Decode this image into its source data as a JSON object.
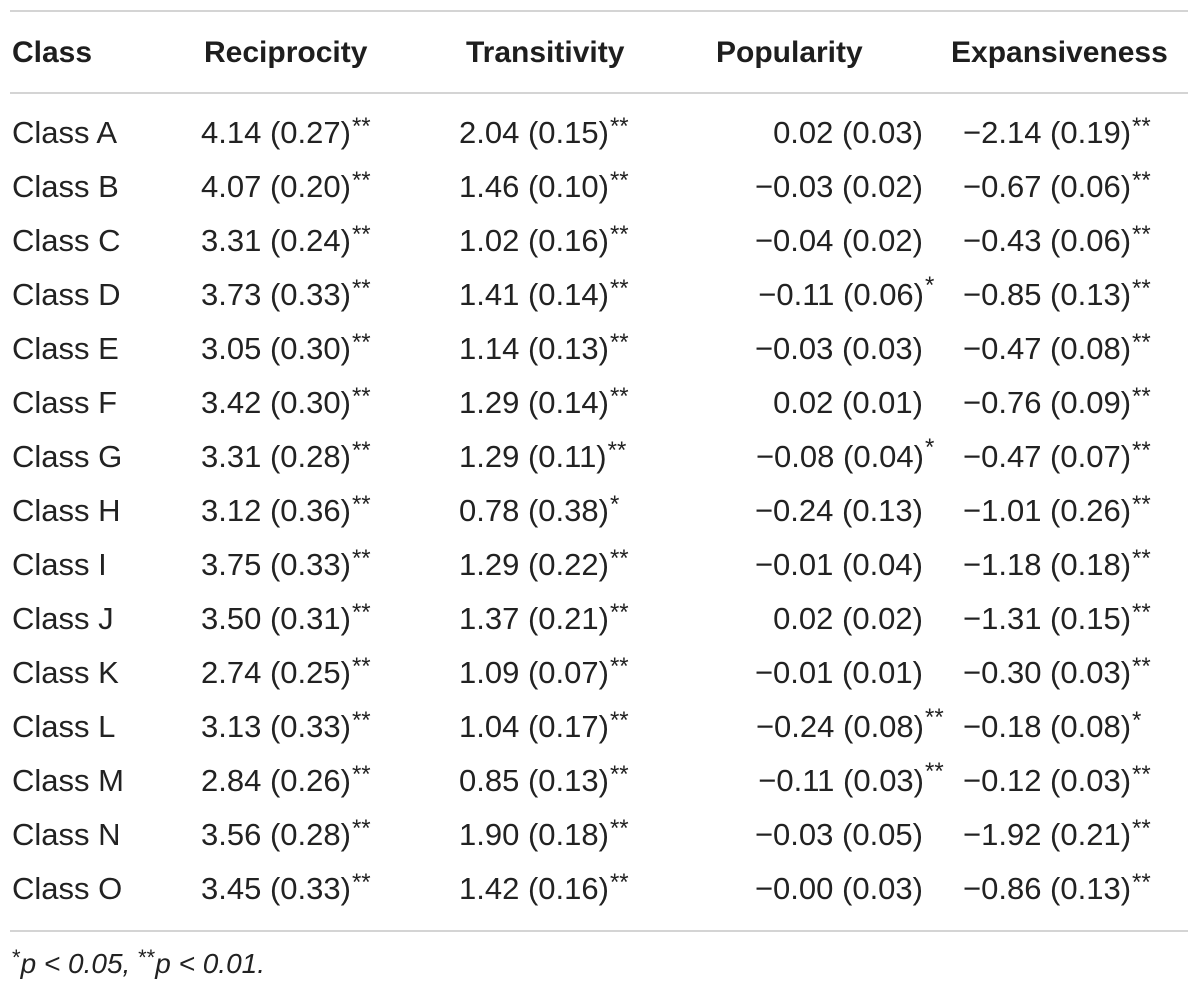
{
  "table": {
    "headers": [
      "Class",
      "Reciprocity",
      "Transitivity",
      "Popularity",
      "Expansiveness"
    ],
    "rows": [
      {
        "cls": "Class A",
        "rec": "4.14 (0.27)",
        "rec_sig": "**",
        "tra": "2.04 (0.15)",
        "tra_sig": "**",
        "pop": "0.02 (0.03)",
        "pop_sig": "",
        "exp": "−2.14 (0.19)",
        "exp_sig": "**"
      },
      {
        "cls": "Class B",
        "rec": "4.07 (0.20)",
        "rec_sig": "**",
        "tra": "1.46 (0.10)",
        "tra_sig": "**",
        "pop": "−0.03 (0.02)",
        "pop_sig": "",
        "exp": "−0.67 (0.06)",
        "exp_sig": "**"
      },
      {
        "cls": "Class C",
        "rec": "3.31 (0.24)",
        "rec_sig": "**",
        "tra": "1.02 (0.16)",
        "tra_sig": "**",
        "pop": "−0.04 (0.02)",
        "pop_sig": "",
        "exp": "−0.43 (0.06)",
        "exp_sig": "**"
      },
      {
        "cls": "Class D",
        "rec": "3.73 (0.33)",
        "rec_sig": "**",
        "tra": "1.41 (0.14)",
        "tra_sig": "**",
        "pop": "−0.11 (0.06)",
        "pop_sig": "*",
        "exp": "−0.85 (0.13)",
        "exp_sig": "**"
      },
      {
        "cls": "Class E",
        "rec": "3.05 (0.30)",
        "rec_sig": "**",
        "tra": "1.14 (0.13)",
        "tra_sig": "**",
        "pop": "−0.03 (0.03)",
        "pop_sig": "",
        "exp": "−0.47 (0.08)",
        "exp_sig": "**"
      },
      {
        "cls": "Class F",
        "rec": "3.42 (0.30)",
        "rec_sig": "**",
        "tra": "1.29 (0.14)",
        "tra_sig": "**",
        "pop": "0.02 (0.01)",
        "pop_sig": "",
        "exp": "−0.76 (0.09)",
        "exp_sig": "**"
      },
      {
        "cls": "Class G",
        "rec": "3.31 (0.28)",
        "rec_sig": "**",
        "tra": "1.29 (0.11)",
        "tra_sig": "**",
        "pop": "−0.08 (0.04)",
        "pop_sig": "*",
        "exp": "−0.47 (0.07)",
        "exp_sig": "**"
      },
      {
        "cls": "Class H",
        "rec": "3.12 (0.36)",
        "rec_sig": "**",
        "tra": "0.78 (0.38)",
        "tra_sig": "*",
        "pop": "−0.24 (0.13)",
        "pop_sig": "",
        "exp": "−1.01 (0.26)",
        "exp_sig": "**"
      },
      {
        "cls": "Class I",
        "rec": "3.75 (0.33)",
        "rec_sig": "**",
        "tra": "1.29 (0.22)",
        "tra_sig": "**",
        "pop": "−0.01 (0.04)",
        "pop_sig": "",
        "exp": "−1.18 (0.18)",
        "exp_sig": "**"
      },
      {
        "cls": "Class J",
        "rec": "3.50 (0.31)",
        "rec_sig": "**",
        "tra": "1.37 (0.21)",
        "tra_sig": "**",
        "pop": "0.02 (0.02)",
        "pop_sig": "",
        "exp": "−1.31 (0.15)",
        "exp_sig": "**"
      },
      {
        "cls": "Class K",
        "rec": "2.74 (0.25)",
        "rec_sig": "**",
        "tra": "1.09 (0.07)",
        "tra_sig": "**",
        "pop": "−0.01 (0.01)",
        "pop_sig": "",
        "exp": "−0.30 (0.03)",
        "exp_sig": "**"
      },
      {
        "cls": "Class L",
        "rec": "3.13 (0.33)",
        "rec_sig": "**",
        "tra": "1.04 (0.17)",
        "tra_sig": "**",
        "pop": "−0.24 (0.08)",
        "pop_sig": "**",
        "exp": "−0.18 (0.08)",
        "exp_sig": "*"
      },
      {
        "cls": "Class M",
        "rec": "2.84 (0.26)",
        "rec_sig": "**",
        "tra": "0.85 (0.13)",
        "tra_sig": "**",
        "pop": "−0.11 (0.03)",
        "pop_sig": "**",
        "exp": "−0.12 (0.03)",
        "exp_sig": "**"
      },
      {
        "cls": "Class N",
        "rec": "3.56 (0.28)",
        "rec_sig": "**",
        "tra": "1.90 (0.18)",
        "tra_sig": "**",
        "pop": "−0.03 (0.05)",
        "pop_sig": "",
        "exp": "−1.92 (0.21)",
        "exp_sig": "**"
      },
      {
        "cls": "Class O",
        "rec": "3.45 (0.33)",
        "rec_sig": "**",
        "tra": "1.42 (0.16)",
        "tra_sig": "**",
        "pop": "−0.00 (0.03)",
        "pop_sig": "",
        "exp": "−0.86 (0.13)",
        "exp_sig": "**"
      }
    ],
    "footnote": {
      "sig1_mark": "*",
      "sig1_text": "p < 0.05, ",
      "sig2_mark": "**",
      "sig2_text": "p < 0.01."
    }
  }
}
